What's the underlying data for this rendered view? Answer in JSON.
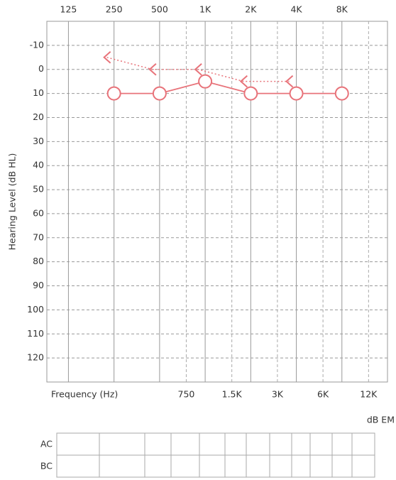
{
  "chart_data": {
    "type": "line",
    "y_label": "Hearing Level (dB HL)",
    "x_label": "Frequency (Hz)",
    "unit_label": "dB EM",
    "xscale": "log",
    "xlim": [
      90,
      16000
    ],
    "xticks": [
      125,
      250,
      500,
      {
        "value": 1000,
        "label": "1K"
      },
      {
        "value": 2000,
        "label": "2K"
      },
      {
        "value": 4000,
        "label": "4K"
      },
      {
        "value": 8000,
        "label": "8K"
      }
    ],
    "xticks_minor": [
      750,
      {
        "value": 1500,
        "label": "1.5K"
      },
      {
        "value": 3000,
        "label": "3K"
      },
      {
        "value": 6000,
        "label": "6K"
      },
      {
        "value": 12000,
        "label": "12K"
      }
    ],
    "ylim": [
      -20,
      130
    ],
    "y_inverted": true,
    "yticks": [
      -10,
      0,
      10,
      20,
      30,
      40,
      50,
      60,
      70,
      80,
      90,
      100,
      110,
      120
    ],
    "grid": true,
    "series": [
      {
        "marker": "circle",
        "line": "solid",
        "color": "#e8737a",
        "x": [
          250,
          500,
          1000,
          2000,
          4000,
          8000
        ],
        "values": [
          10,
          10,
          5,
          10,
          10,
          10
        ]
      },
      {
        "marker": "bracket",
        "line": "dotted",
        "color": "#e8737a",
        "x": [
          250,
          500,
          1000,
          2000,
          4000
        ],
        "values": [
          -5,
          0,
          0,
          5,
          5
        ]
      }
    ],
    "table": {
      "rows": [
        "AC",
        "BC"
      ]
    }
  }
}
